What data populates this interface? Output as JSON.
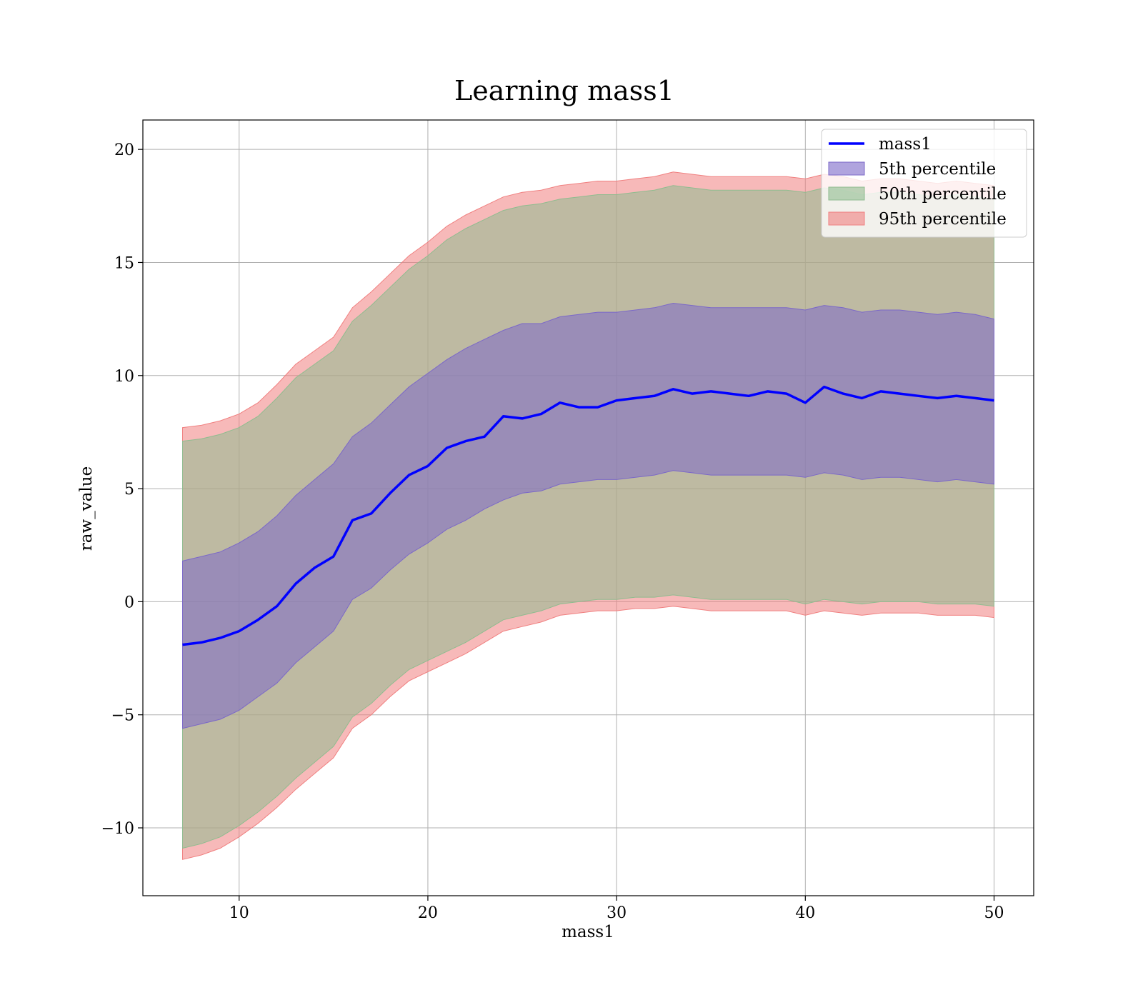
{
  "chart_data": {
    "type": "area",
    "title": "Learning mass1",
    "xlabel": "mass1",
    "ylabel": "raw_value",
    "xlim": [
      4.9,
      52.1
    ],
    "ylim": [
      -13.0,
      21.3
    ],
    "xticks": [
      10,
      20,
      30,
      40,
      50
    ],
    "xtick_labels": [
      "10",
      "20",
      "30",
      "40",
      "50"
    ],
    "yticks": [
      -10,
      -5,
      0,
      5,
      10,
      15,
      20
    ],
    "ytick_labels": [
      "−10",
      "−5",
      "0",
      "5",
      "10",
      "15",
      "20"
    ],
    "grid": true,
    "legend_position": "upper-right",
    "x": [
      7,
      8,
      9,
      10,
      11,
      12,
      13,
      14,
      15,
      16,
      17,
      18,
      19,
      20,
      21,
      22,
      23,
      24,
      25,
      26,
      27,
      28,
      29,
      30,
      31,
      32,
      33,
      34,
      35,
      36,
      37,
      38,
      39,
      40,
      41,
      42,
      43,
      44,
      45,
      46,
      47,
      48,
      49,
      50
    ],
    "series": [
      {
        "name": "95th percentile",
        "kind": "band",
        "color": "#f08080",
        "lower": [
          -11.4,
          -11.2,
          -10.9,
          -10.4,
          -9.8,
          -9.1,
          -8.3,
          -7.6,
          -6.9,
          -5.6,
          -5.0,
          -4.2,
          -3.5,
          -3.1,
          -2.7,
          -2.3,
          -1.8,
          -1.3,
          -1.1,
          -0.9,
          -0.6,
          -0.5,
          -0.4,
          -0.4,
          -0.3,
          -0.3,
          -0.2,
          -0.3,
          -0.4,
          -0.4,
          -0.4,
          -0.4,
          -0.4,
          -0.6,
          -0.4,
          -0.5,
          -0.6,
          -0.5,
          -0.5,
          -0.5,
          -0.6,
          -0.6,
          -0.6,
          -0.7
        ],
        "upper": [
          7.7,
          7.8,
          8.0,
          8.3,
          8.8,
          9.6,
          10.5,
          11.1,
          11.7,
          13.0,
          13.7,
          14.5,
          15.3,
          15.9,
          16.6,
          17.1,
          17.5,
          17.9,
          18.1,
          18.2,
          18.4,
          18.5,
          18.6,
          18.6,
          18.7,
          18.8,
          19.0,
          18.9,
          18.8,
          18.8,
          18.8,
          18.8,
          18.8,
          18.7,
          18.9,
          18.8,
          18.6,
          18.7,
          18.7,
          18.6,
          18.5,
          18.6,
          18.5,
          18.4
        ]
      },
      {
        "name": "50th percentile",
        "kind": "band",
        "color": "#8fbc8f",
        "lower": [
          -10.9,
          -10.7,
          -10.4,
          -9.9,
          -9.3,
          -8.6,
          -7.8,
          -7.1,
          -6.4,
          -5.1,
          -4.5,
          -3.7,
          -3.0,
          -2.6,
          -2.2,
          -1.8,
          -1.3,
          -0.8,
          -0.6,
          -0.4,
          -0.1,
          0.0,
          0.1,
          0.1,
          0.2,
          0.2,
          0.3,
          0.2,
          0.1,
          0.1,
          0.1,
          0.1,
          0.1,
          -0.1,
          0.1,
          0.0,
          -0.1,
          0.0,
          0.0,
          0.0,
          -0.1,
          -0.1,
          -0.1,
          -0.2
        ],
        "upper": [
          7.1,
          7.2,
          7.4,
          7.7,
          8.2,
          9.0,
          9.9,
          10.5,
          11.1,
          12.4,
          13.1,
          13.9,
          14.7,
          15.3,
          16.0,
          16.5,
          16.9,
          17.3,
          17.5,
          17.6,
          17.8,
          17.9,
          18.0,
          18.0,
          18.1,
          18.2,
          18.4,
          18.3,
          18.2,
          18.2,
          18.2,
          18.2,
          18.2,
          18.1,
          18.3,
          18.2,
          18.0,
          18.1,
          18.1,
          18.0,
          17.9,
          18.0,
          17.9,
          17.8
        ]
      },
      {
        "name": "5th percentile",
        "kind": "band",
        "color": "#7b68c8",
        "lower": [
          -5.6,
          -5.4,
          -5.2,
          -4.8,
          -4.2,
          -3.6,
          -2.7,
          -2.0,
          -1.3,
          0.1,
          0.6,
          1.4,
          2.1,
          2.6,
          3.2,
          3.6,
          4.1,
          4.5,
          4.8,
          4.9,
          5.2,
          5.3,
          5.4,
          5.4,
          5.5,
          5.6,
          5.8,
          5.7,
          5.6,
          5.6,
          5.6,
          5.6,
          5.6,
          5.5,
          5.7,
          5.6,
          5.4,
          5.5,
          5.5,
          5.4,
          5.3,
          5.4,
          5.3,
          5.2
        ],
        "upper": [
          1.8,
          2.0,
          2.2,
          2.6,
          3.1,
          3.8,
          4.7,
          5.4,
          6.1,
          7.3,
          7.9,
          8.7,
          9.5,
          10.1,
          10.7,
          11.2,
          11.6,
          12.0,
          12.3,
          12.3,
          12.6,
          12.7,
          12.8,
          12.8,
          12.9,
          13.0,
          13.2,
          13.1,
          13.0,
          13.0,
          13.0,
          13.0,
          13.0,
          12.9,
          13.1,
          13.0,
          12.8,
          12.9,
          12.9,
          12.8,
          12.7,
          12.8,
          12.7,
          12.5
        ]
      },
      {
        "name": "mass1",
        "kind": "line",
        "color": "#0000ff",
        "values": [
          -1.9,
          -1.8,
          -1.6,
          -1.3,
          -0.8,
          -0.2,
          0.8,
          1.5,
          2.0,
          3.6,
          3.9,
          4.8,
          5.6,
          6.0,
          6.8,
          7.1,
          7.3,
          8.2,
          8.1,
          8.3,
          8.8,
          8.6,
          8.6,
          8.9,
          9.0,
          9.1,
          9.4,
          9.2,
          9.3,
          9.2,
          9.1,
          9.3,
          9.2,
          8.8,
          9.5,
          9.2,
          9.0,
          9.3,
          9.2,
          9.1,
          9.0,
          9.1,
          9.0,
          8.9
        ]
      }
    ]
  }
}
